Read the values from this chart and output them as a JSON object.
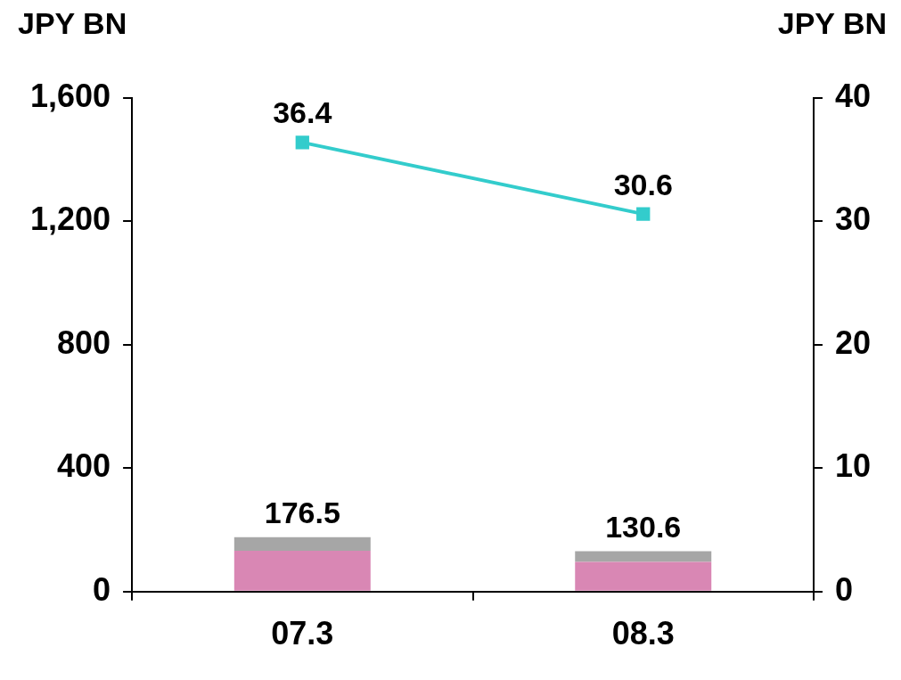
{
  "chart_data": {
    "type": "bar",
    "stacked": true,
    "categories": [
      "07.3",
      "08.3"
    ],
    "series": [
      {
        "color": "#d987b4",
        "values": [
          132,
          96
        ]
      },
      {
        "color": "#a6a6a6",
        "values": [
          44.5,
          34.6
        ]
      },
      {
        "type": "line",
        "axis": "y2",
        "color": "#33cccc",
        "values": [
          36.4,
          30.6
        ],
        "value_labels": [
          "36.4",
          "30.6"
        ],
        "marker": "square"
      }
    ],
    "totals": [
      "176.5",
      "130.6"
    ],
    "ylabel": "JPY BN",
    "y2label": "JPY BN",
    "ylim": [
      0,
      1600
    ],
    "yticks": [
      0,
      {
        "value": 400,
        "label": "400"
      },
      {
        "value": 800,
        "label": "800"
      },
      {
        "value": 1200,
        "label": "1,200"
      },
      {
        "value": 1600,
        "label": "1,600"
      }
    ],
    "y2lim": [
      0,
      40
    ],
    "y2ticks": [
      0,
      10,
      20,
      30,
      40
    ],
    "grid": false,
    "legend": false
  }
}
